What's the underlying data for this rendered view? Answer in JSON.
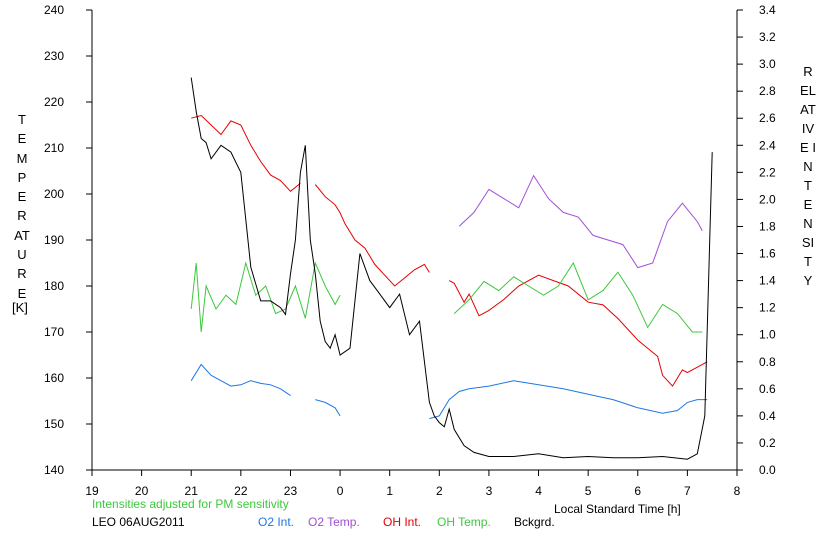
{
  "chart_data": {
    "type": "line",
    "station": "LEO 06AUG2011",
    "note": "Intensities adjusted for PM sensitivity",
    "xlabel": "Local Standard Time [h]",
    "x_ticks": [
      "19",
      "20",
      "21",
      "22",
      "23",
      "0",
      "1",
      "2",
      "3",
      "4",
      "5",
      "6",
      "7",
      "8"
    ],
    "x_range": [
      19,
      32
    ],
    "ylabel_left": "TEMPERATURE",
    "ylabel_left_unit": "[K]",
    "yleft_range": [
      140,
      240
    ],
    "yleft_ticks": [
      "140",
      "150",
      "160",
      "170",
      "180",
      "190",
      "200",
      "210",
      "220",
      "230",
      "240"
    ],
    "ylabel_right": "RELATIVE INTENSITY",
    "yright_range": [
      0,
      3.4
    ],
    "yright_ticks": [
      "0.0",
      "0.2",
      "0.4",
      "0.6",
      "0.8",
      "1.0",
      "1.2",
      "1.4",
      "1.6",
      "1.8",
      "2.0",
      "2.2",
      "2.4",
      "2.6",
      "2.8",
      "3.0",
      "3.2",
      "3.4"
    ],
    "grid": false,
    "legend": [
      {
        "label": "O2 Int.",
        "color": "#1e78e6"
      },
      {
        "label": "O2 Temp.",
        "color": "#a050d2"
      },
      {
        "label": "OH Int.",
        "color": "#e60000"
      },
      {
        "label": "OH Temp.",
        "color": "#3cc83c"
      },
      {
        "label": "Bckgrd.",
        "color": "#000000"
      }
    ],
    "series": [
      {
        "name": "O2 Int.",
        "axis": "right",
        "color": "#1e78e6",
        "segments": [
          {
            "x": [
              21.0,
              21.2,
              21.4,
              21.6,
              21.8,
              22.0,
              22.2,
              22.4,
              22.6,
              22.8,
              23.0
            ],
            "y": [
              0.66,
              0.78,
              0.7,
              0.66,
              0.62,
              0.63,
              0.66,
              0.64,
              0.63,
              0.6,
              0.55
            ]
          },
          {
            "x": [
              23.5,
              23.7,
              23.9,
              24.0
            ],
            "y": [
              0.52,
              0.5,
              0.46,
              0.4
            ]
          },
          {
            "x": [
              25.8,
              26.0,
              26.2,
              26.4,
              26.6,
              27.0,
              27.5,
              28.0,
              28.5,
              29.0,
              29.5,
              30.0,
              30.5,
              30.8,
              31.0,
              31.2,
              31.4
            ],
            "y": [
              0.38,
              0.4,
              0.52,
              0.58,
              0.6,
              0.62,
              0.66,
              0.63,
              0.6,
              0.56,
              0.52,
              0.46,
              0.42,
              0.44,
              0.5,
              0.52,
              0.52
            ]
          }
        ]
      },
      {
        "name": "O2 Temp.",
        "axis": "left",
        "color": "#a050d2",
        "segments": [
          {
            "x": [
              26.4,
              26.7,
              27.0,
              27.3,
              27.6,
              27.9,
              28.2,
              28.5,
              28.8,
              29.1,
              29.4,
              29.7,
              30.0,
              30.3,
              30.6,
              30.9,
              31.2,
              31.3
            ],
            "y": [
              193,
              196,
              201,
              199,
              197,
              204,
              199,
              196,
              195,
              191,
              190,
              189,
              184,
              185,
              194,
              198,
              194,
              192
            ]
          }
        ]
      },
      {
        "name": "OH Int.",
        "axis": "right",
        "color": "#e60000",
        "segments": [
          {
            "x": [
              21.0,
              21.2,
              21.4,
              21.6,
              21.8,
              22.0,
              22.2,
              22.4,
              22.6,
              22.8,
              23.0,
              23.2
            ],
            "y": [
              2.6,
              2.62,
              2.55,
              2.48,
              2.58,
              2.55,
              2.4,
              2.28,
              2.18,
              2.14,
              2.06,
              2.12
            ]
          },
          {
            "x": [
              23.5,
              23.7,
              23.9,
              24.0,
              24.1,
              24.3,
              24.5,
              24.7,
              24.9,
              25.1,
              25.3,
              25.5,
              25.7,
              25.8
            ],
            "y": [
              2.11,
              2.02,
              1.96,
              1.9,
              1.82,
              1.7,
              1.64,
              1.52,
              1.44,
              1.36,
              1.42,
              1.48,
              1.52,
              1.46
            ]
          },
          {
            "x": [
              26.2,
              26.3,
              26.5,
              26.6,
              26.8,
              27.0,
              27.3,
              27.6,
              28.0,
              28.3,
              28.6,
              29.0,
              29.3,
              29.6,
              30.0,
              30.2,
              30.4,
              30.5,
              30.7,
              30.9,
              31.0,
              31.2,
              31.4
            ],
            "y": [
              1.4,
              1.38,
              1.24,
              1.3,
              1.14,
              1.18,
              1.26,
              1.36,
              1.44,
              1.4,
              1.36,
              1.24,
              1.22,
              1.12,
              0.96,
              0.9,
              0.84,
              0.7,
              0.62,
              0.74,
              0.72,
              0.76,
              0.8
            ]
          }
        ]
      },
      {
        "name": "OH Temp.",
        "axis": "left",
        "color": "#3cc83c",
        "segments": [
          {
            "x": [
              21.0,
              21.1,
              21.2,
              21.3,
              21.5,
              21.7,
              21.9,
              22.1,
              22.3,
              22.5,
              22.7,
              22.9,
              23.1,
              23.3,
              23.5,
              23.7,
              23.9,
              24.0
            ],
            "y": [
              175,
              185,
              170,
              180,
              175,
              178,
              176,
              185,
              178,
              180,
              174,
              175,
              180,
              173,
              185,
              180,
              176,
              178
            ]
          },
          {
            "x": [
              26.3,
              26.6,
              26.9,
              27.2,
              27.5,
              27.8,
              28.1,
              28.4,
              28.7,
              29.0,
              29.3,
              29.6,
              29.9,
              30.2,
              30.5,
              30.8,
              31.1,
              31.3
            ],
            "y": [
              174,
              177,
              181,
              179,
              182,
              180,
              178,
              180,
              185,
              177,
              179,
              183,
              178,
              171,
              176,
              174,
              170,
              170
            ]
          }
        ]
      },
      {
        "name": "Bckgrd.",
        "axis": "right",
        "color": "#000000",
        "segments": [
          {
            "x": [
              21.0,
              21.1,
              21.2,
              21.3,
              21.4,
              21.6,
              21.8,
              22.0,
              22.1,
              22.2,
              22.4,
              22.6,
              22.8,
              22.9,
              23.0,
              23.1,
              23.2,
              23.3,
              23.4,
              23.5,
              23.6,
              23.7,
              23.8,
              23.9,
              24.0,
              24.2,
              24.4,
              24.6,
              24.8,
              25.0,
              25.2,
              25.4,
              25.6,
              25.8,
              25.9,
              26.0,
              26.1,
              26.2,
              26.3,
              26.5,
              26.7,
              27.0,
              27.5,
              28.0,
              28.5,
              29.0,
              29.5,
              30.0,
              30.5,
              31.0,
              31.2,
              31.35,
              31.5
            ],
            "y": [
              2.9,
              2.65,
              2.45,
              2.42,
              2.3,
              2.4,
              2.35,
              2.2,
              1.85,
              1.5,
              1.25,
              1.25,
              1.2,
              1.15,
              1.45,
              1.7,
              2.2,
              2.4,
              1.7,
              1.45,
              1.1,
              0.95,
              0.9,
              1.0,
              0.85,
              0.9,
              1.6,
              1.4,
              1.3,
              1.2,
              1.3,
              1.0,
              1.1,
              0.5,
              0.4,
              0.35,
              0.32,
              0.45,
              0.3,
              0.18,
              0.13,
              0.1,
              0.1,
              0.12,
              0.09,
              0.1,
              0.09,
              0.09,
              0.1,
              0.08,
              0.12,
              0.4,
              2.35
            ]
          }
        ]
      }
    ]
  }
}
